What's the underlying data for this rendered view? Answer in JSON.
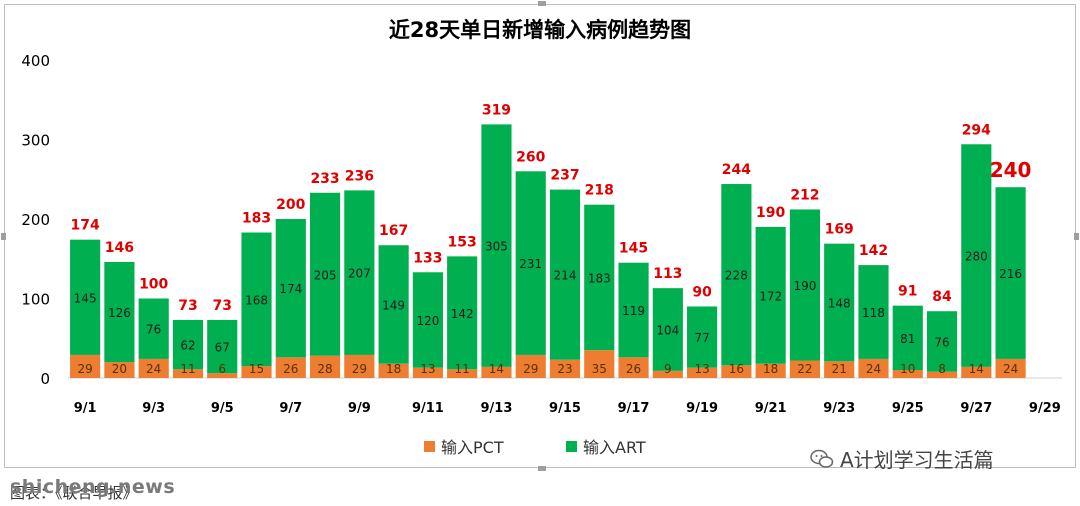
{
  "chart_data": {
    "type": "bar",
    "stacked": true,
    "title": "近28天单日新增输入病例趋势图",
    "ylim": [
      0,
      400
    ],
    "yticks": [
      "0",
      "100",
      "200",
      "300",
      "400"
    ],
    "categories": [
      "9/1",
      "9/2",
      "9/3",
      "9/4",
      "9/5",
      "9/6",
      "9/7",
      "9/8",
      "9/9",
      "9/10",
      "9/11",
      "9/12",
      "9/13",
      "9/14",
      "9/15",
      "9/16",
      "9/17",
      "9/18",
      "9/19",
      "9/20",
      "9/21",
      "9/22",
      "9/23",
      "9/24",
      "9/25",
      "9/26",
      "9/27",
      "9/28"
    ],
    "xtick_labels": [
      "9/1",
      "9/3",
      "9/5",
      "9/7",
      "9/9",
      "9/11",
      "9/13",
      "9/15",
      "9/17",
      "9/19",
      "9/21",
      "9/23",
      "9/25",
      "9/27",
      "9/29"
    ],
    "series": [
      {
        "name": "输入PCT",
        "color": "#ED7D31",
        "values": [
          29,
          20,
          24,
          11,
          6,
          15,
          26,
          28,
          29,
          18,
          13,
          11,
          14,
          29,
          23,
          35,
          26,
          9,
          13,
          16,
          18,
          22,
          21,
          24,
          10,
          8,
          14,
          24
        ]
      },
      {
        "name": "输入ART",
        "color": "#00B050",
        "values": [
          145,
          126,
          76,
          62,
          67,
          168,
          174,
          205,
          207,
          149,
          120,
          142,
          305,
          231,
          214,
          183,
          119,
          104,
          77,
          228,
          172,
          190,
          148,
          118,
          81,
          76,
          280,
          216
        ]
      }
    ],
    "totals": [
      174,
      146,
      100,
      73,
      73,
      183,
      200,
      233,
      236,
      167,
      133,
      153,
      319,
      260,
      237,
      218,
      145,
      113,
      90,
      244,
      190,
      212,
      169,
      142,
      91,
      84,
      294,
      240
    ],
    "total_label_color": "#E00000",
    "legend_position": "bottom",
    "grid": false
  },
  "legend": {
    "pct_label": "输入PCT",
    "art_label": "输入ART"
  },
  "watermark": {
    "text": "A计划学习生活篇",
    "icon": "wechat-icon"
  },
  "footer": {
    "site": "shicheng.news",
    "source": "图表：《联合早报》"
  }
}
